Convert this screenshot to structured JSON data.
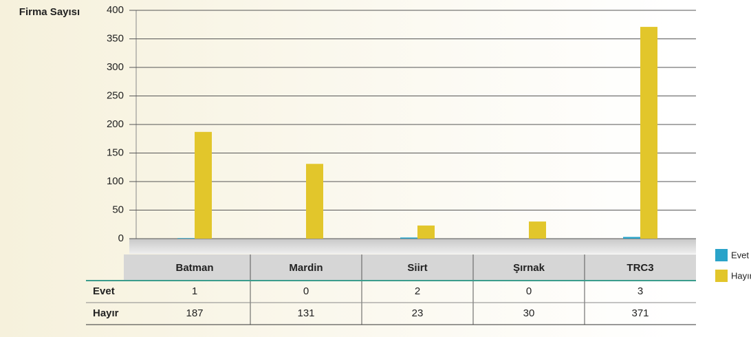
{
  "chart_data": {
    "type": "bar",
    "ylabel": "Firma Sayısı",
    "categories": [
      "Batman",
      "Mardin",
      "Siirt",
      "Şırnak",
      "TRC3"
    ],
    "series": [
      {
        "name": "Evet",
        "color": "#2aa3c9",
        "values": [
          1,
          0,
          2,
          0,
          3
        ]
      },
      {
        "name": "Hayır",
        "color": "#e2c62b",
        "values": [
          187,
          131,
          23,
          30,
          371
        ]
      }
    ],
    "ylim": [
      0,
      400
    ],
    "yticks": [
      0,
      50,
      100,
      150,
      200,
      250,
      300,
      350,
      400
    ],
    "grid": true
  }
}
